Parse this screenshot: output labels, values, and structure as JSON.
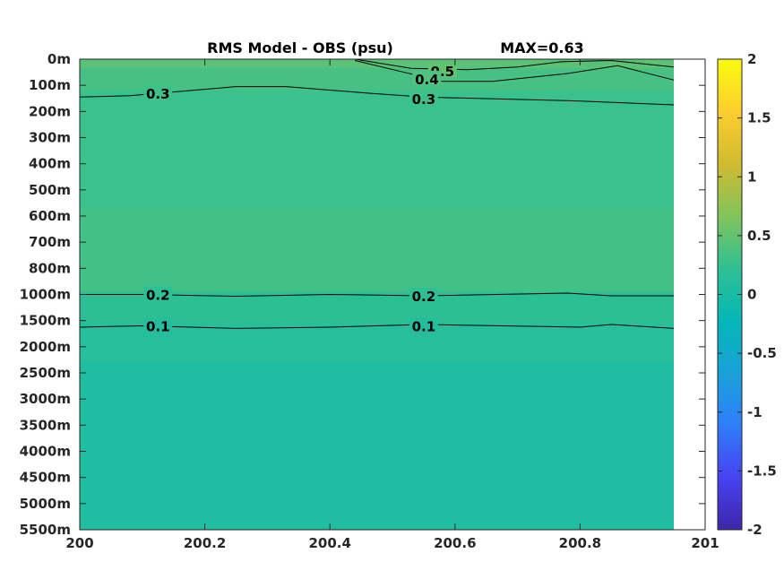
{
  "chart_data": {
    "type": "heatmap",
    "title": "RMS Model - OBS (psu)",
    "max_label": "MAX=0.63",
    "x_ticks": [
      "200",
      "200.2",
      "200.4",
      "200.6",
      "200.8",
      "201"
    ],
    "x_tick_values": [
      200,
      200.2,
      200.4,
      200.6,
      200.8,
      201
    ],
    "xlim": [
      200,
      201
    ],
    "x_data_end": 200.95,
    "y_ticks": [
      "0m",
      "100m",
      "200m",
      "300m",
      "400m",
      "500m",
      "600m",
      "700m",
      "800m",
      "1000m",
      "1500m",
      "2000m",
      "2500m",
      "3000m",
      "3500m",
      "4000m",
      "4500m",
      "5000m",
      "5500m"
    ],
    "y_axis_note": "depth levels, equally spaced, top to bottom",
    "bands": [
      {
        "from_level": 0,
        "to_level": 0.35,
        "value": 0.45
      },
      {
        "from_level": 0.35,
        "to_level": 1.2,
        "value": 0.35
      },
      {
        "from_level": 1.2,
        "to_level": 5.7,
        "value": 0.28
      },
      {
        "from_level": 5.7,
        "to_level": 8.9,
        "value": 0.32
      },
      {
        "from_level": 8.9,
        "to_level": 10.1,
        "value": 0.18
      },
      {
        "from_level": 10.1,
        "to_level": 11.6,
        "value": 0.12
      },
      {
        "from_level": 11.6,
        "to_level": 18,
        "value": 0.05
      }
    ],
    "contours": [
      {
        "label": "0.5",
        "level": 0.5,
        "label_x": 200.58,
        "label_level": 0.45,
        "points": [
          [
            200.44,
            0
          ],
          [
            200.53,
            0.35
          ],
          [
            200.62,
            0.4
          ],
          [
            200.7,
            0.3
          ],
          [
            200.77,
            0.1
          ],
          [
            200.85,
            0.05
          ],
          [
            200.95,
            0.3
          ]
        ]
      },
      {
        "label": "0.4",
        "level": 0.4,
        "label_x": 200.555,
        "label_level": 0.75,
        "points": [
          [
            200.44,
            0.05
          ],
          [
            200.58,
            0.85
          ],
          [
            200.66,
            0.85
          ],
          [
            200.78,
            0.55
          ],
          [
            200.86,
            0.25
          ],
          [
            200.95,
            0.8
          ]
        ]
      },
      {
        "label": "0.3",
        "level": 0.3,
        "label_x": 200.125,
        "label_level": 1.3,
        "points": [
          [
            200,
            1.45
          ],
          [
            200.08,
            1.4
          ],
          [
            200.25,
            1.05
          ],
          [
            200.33,
            1.05
          ],
          [
            200.46,
            1.3
          ],
          [
            200.55,
            1.45
          ],
          [
            200.8,
            1.6
          ],
          [
            200.95,
            1.75
          ]
        ]
      },
      {
        "label": "0.3",
        "level": 0.3,
        "label_x": 200.55,
        "label_level": 1.5,
        "inline_only": true,
        "points": []
      },
      {
        "label": "0.2",
        "level": 0.2,
        "label_x": 200.125,
        "label_level": 9.0,
        "points": [
          [
            200,
            9.0
          ],
          [
            200.1,
            9.0
          ],
          [
            200.25,
            9.07
          ],
          [
            200.4,
            9.0
          ],
          [
            200.55,
            9.05
          ],
          [
            200.78,
            8.95
          ],
          [
            200.85,
            9.05
          ],
          [
            200.95,
            9.05
          ]
        ]
      },
      {
        "label": "0.2",
        "level": 0.2,
        "label_x": 200.55,
        "label_level": 9.05,
        "inline_only": true,
        "points": []
      },
      {
        "label": "0.1",
        "level": 0.1,
        "label_x": 200.125,
        "label_level": 10.2,
        "points": [
          [
            200,
            10.25
          ],
          [
            200.1,
            10.2
          ],
          [
            200.25,
            10.3
          ],
          [
            200.4,
            10.25
          ],
          [
            200.55,
            10.15
          ],
          [
            200.8,
            10.25
          ],
          [
            200.85,
            10.15
          ],
          [
            200.95,
            10.3
          ]
        ]
      },
      {
        "label": "0.1",
        "level": 0.1,
        "label_x": 200.55,
        "label_level": 10.2,
        "inline_only": true,
        "points": []
      }
    ],
    "colorbar": {
      "limits": [
        -2,
        2
      ],
      "ticks": [
        "2",
        "1.5",
        "1",
        "0.5",
        "0",
        "-0.5",
        "-1",
        "-1.5",
        "-2"
      ],
      "tick_values": [
        2,
        1.5,
        1,
        0.5,
        0,
        -0.5,
        -1,
        -1.5,
        -2
      ],
      "colormap": "parula",
      "stops": [
        "#3e26a8",
        "#4743f3",
        "#2f7ef9",
        "#1aa1da",
        "#04b7b6",
        "#30c093",
        "#80c45b",
        "#d0bb30",
        "#fcce2e",
        "#f9fb0e"
      ]
    }
  }
}
